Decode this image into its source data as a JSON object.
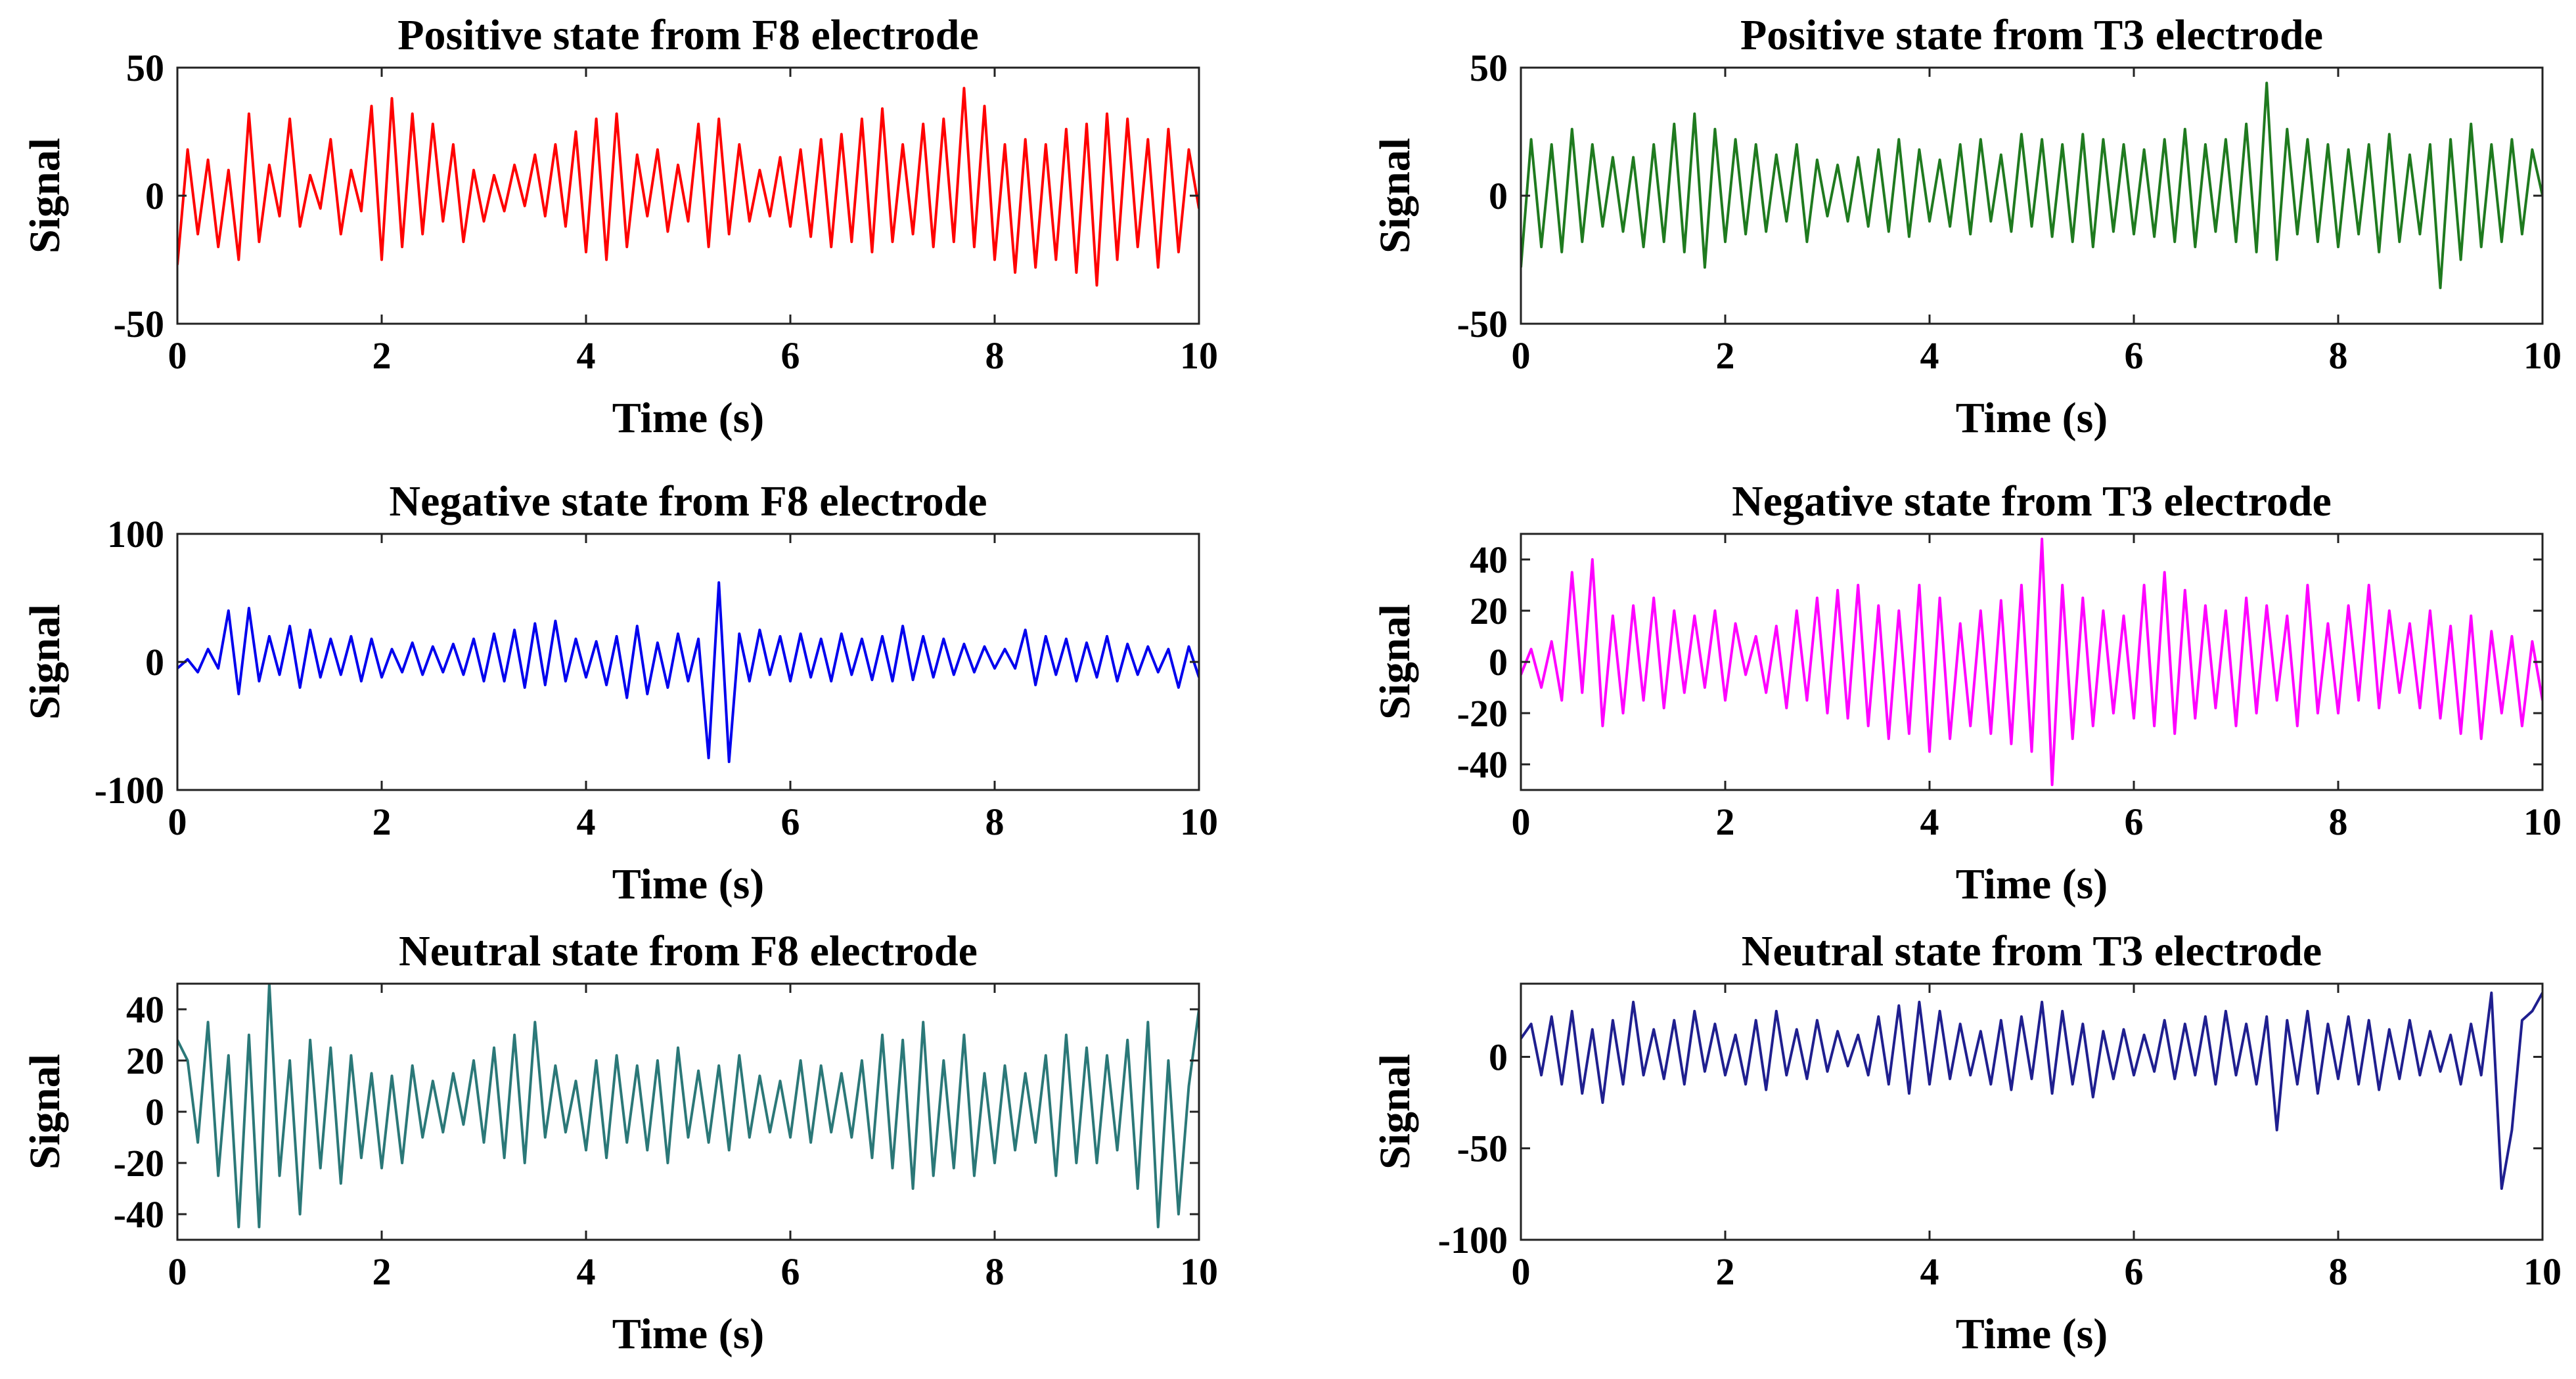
{
  "chart_data": [
    {
      "type": "line",
      "title": "Positive state from F8 electrode",
      "xlabel": "Time (s)",
      "ylabel": "Signal",
      "xlim": [
        0,
        10
      ],
      "ylim": [
        -50,
        50
      ],
      "xticks": [
        0,
        2,
        4,
        6,
        8,
        10
      ],
      "yticks": [
        -50,
        0,
        50
      ],
      "color": "#ff0000",
      "series": [
        {
          "name": "Positive state from F8 electrode",
          "x_start": 0,
          "x_step": 0.1,
          "values": [
            -27,
            18,
            -15,
            14,
            -20,
            10,
            -25,
            32,
            -18,
            12,
            -8,
            30,
            -12,
            8,
            -5,
            22,
            -15,
            10,
            -6,
            35,
            -25,
            38,
            -20,
            32,
            -15,
            28,
            -10,
            20,
            -18,
            10,
            -10,
            8,
            -6,
            12,
            -4,
            16,
            -8,
            20,
            -12,
            25,
            -22,
            30,
            -25,
            32,
            -20,
            16,
            -8,
            18,
            -14,
            12,
            -10,
            28,
            -20,
            30,
            -15,
            20,
            -10,
            10,
            -8,
            15,
            -12,
            18,
            -16,
            22,
            -20,
            24,
            -18,
            30,
            -22,
            34,
            -18,
            20,
            -15,
            28,
            -20,
            30,
            -18,
            42,
            -20,
            35,
            -25,
            20,
            -30,
            22,
            -28,
            20,
            -25,
            26,
            -30,
            28,
            -35,
            32,
            -25,
            30,
            -20,
            22,
            -28,
            26,
            -22,
            18,
            -5
          ]
        }
      ]
    },
    {
      "type": "line",
      "title": "Positive state from T3 electrode",
      "xlabel": "Time (s)",
      "ylabel": "Signal",
      "xlim": [
        0,
        10
      ],
      "ylim": [
        -50,
        50
      ],
      "xticks": [
        0,
        2,
        4,
        6,
        8,
        10
      ],
      "yticks": [
        -50,
        0,
        50
      ],
      "color": "#1f7a1f",
      "series": [
        {
          "name": "Positive state from T3 electrode",
          "x_start": 0,
          "x_step": 0.1,
          "values": [
            -28,
            22,
            -20,
            20,
            -22,
            26,
            -18,
            20,
            -12,
            15,
            -14,
            15,
            -20,
            20,
            -18,
            28,
            -22,
            32,
            -28,
            26,
            -18,
            22,
            -15,
            20,
            -14,
            16,
            -10,
            20,
            -18,
            14,
            -8,
            12,
            -10,
            15,
            -12,
            18,
            -14,
            22,
            -16,
            18,
            -10,
            14,
            -12,
            20,
            -15,
            22,
            -10,
            16,
            -14,
            24,
            -12,
            22,
            -16,
            20,
            -18,
            24,
            -20,
            22,
            -14,
            20,
            -15,
            18,
            -16,
            22,
            -18,
            26,
            -20,
            20,
            -14,
            22,
            -18,
            28,
            -22,
            44,
            -25,
            26,
            -15,
            22,
            -18,
            20,
            -20,
            18,
            -15,
            20,
            -22,
            24,
            -18,
            16,
            -15,
            20,
            -36,
            22,
            -25,
            28,
            -20,
            20,
            -18,
            22,
            -15,
            18,
            0
          ]
        }
      ]
    },
    {
      "type": "line",
      "title": "Negative state from F8 electrode",
      "xlabel": "Time (s)",
      "ylabel": "Signal",
      "xlim": [
        0,
        10
      ],
      "ylim": [
        -100,
        100
      ],
      "xticks": [
        0,
        2,
        4,
        6,
        8,
        10
      ],
      "yticks": [
        -100,
        0,
        100
      ],
      "color": "#0000ee",
      "series": [
        {
          "name": "Negative state from F8 electrode",
          "x_start": 0,
          "x_step": 0.1,
          "values": [
            -5,
            2,
            -8,
            10,
            -5,
            40,
            -25,
            42,
            -15,
            20,
            -10,
            28,
            -20,
            25,
            -12,
            18,
            -10,
            20,
            -15,
            18,
            -12,
            10,
            -8,
            15,
            -10,
            12,
            -8,
            14,
            -10,
            18,
            -15,
            22,
            -15,
            25,
            -20,
            30,
            -18,
            32,
            -15,
            18,
            -12,
            16,
            -18,
            20,
            -28,
            28,
            -25,
            15,
            -20,
            22,
            -15,
            18,
            -75,
            62,
            -78,
            22,
            -15,
            25,
            -10,
            20,
            -15,
            22,
            -12,
            18,
            -15,
            22,
            -10,
            18,
            -14,
            20,
            -15,
            28,
            -14,
            20,
            -12,
            18,
            -10,
            14,
            -8,
            12,
            -5,
            10,
            -5,
            25,
            -18,
            20,
            -10,
            18,
            -15,
            15,
            -12,
            20,
            -15,
            14,
            -10,
            12,
            -8,
            10,
            -20,
            12,
            -12
          ]
        }
      ]
    },
    {
      "type": "line",
      "title": "Negative state from T3 electrode",
      "xlabel": "Time (s)",
      "ylabel": "Signal",
      "xlim": [
        0,
        10
      ],
      "ylim": [
        -50,
        50
      ],
      "xticks": [
        0,
        2,
        4,
        6,
        8,
        10
      ],
      "yticks": [
        -40,
        -20,
        0,
        20,
        40
      ],
      "color": "#ff00ff",
      "series": [
        {
          "name": "Negative state from T3 electrode",
          "x_start": 0,
          "x_step": 0.1,
          "values": [
            -5,
            5,
            -10,
            8,
            -15,
            35,
            -12,
            40,
            -25,
            18,
            -20,
            22,
            -15,
            25,
            -18,
            20,
            -12,
            18,
            -10,
            20,
            -15,
            15,
            -5,
            10,
            -12,
            14,
            -18,
            20,
            -15,
            25,
            -20,
            28,
            -22,
            30,
            -25,
            22,
            -30,
            20,
            -28,
            30,
            -35,
            25,
            -30,
            15,
            -25,
            20,
            -28,
            24,
            -32,
            30,
            -35,
            48,
            -48,
            30,
            -30,
            25,
            -25,
            20,
            -20,
            18,
            -22,
            30,
            -25,
            35,
            -28,
            28,
            -22,
            22,
            -18,
            20,
            -25,
            25,
            -20,
            22,
            -15,
            18,
            -25,
            30,
            -20,
            15,
            -20,
            22,
            -15,
            30,
            -18,
            20,
            -12,
            15,
            -18,
            20,
            -22,
            14,
            -28,
            18,
            -30,
            12,
            -20,
            10,
            -25,
            8,
            -15
          ]
        }
      ]
    },
    {
      "type": "line",
      "title": "Neutral state from F8 electrode",
      "xlabel": "Time (s)",
      "ylabel": "Signal",
      "xlim": [
        0,
        10
      ],
      "ylim": [
        -50,
        50
      ],
      "xticks": [
        0,
        2,
        4,
        6,
        8,
        10
      ],
      "yticks": [
        -40,
        -20,
        0,
        20,
        40
      ],
      "color": "#2b7878",
      "series": [
        {
          "name": "Neutral state from F8 electrode",
          "x_start": 0,
          "x_step": 0.1,
          "values": [
            28,
            20,
            -12,
            35,
            -25,
            22,
            -45,
            30,
            -45,
            50,
            -25,
            20,
            -40,
            28,
            -22,
            25,
            -28,
            22,
            -18,
            15,
            -22,
            14,
            -20,
            18,
            -10,
            12,
            -8,
            15,
            -5,
            20,
            -12,
            25,
            -18,
            30,
            -20,
            35,
            -10,
            18,
            -8,
            12,
            -15,
            20,
            -18,
            22,
            -12,
            18,
            -15,
            20,
            -20,
            25,
            -10,
            16,
            -12,
            18,
            -15,
            22,
            -10,
            14,
            -8,
            12,
            -10,
            20,
            -12,
            18,
            -8,
            15,
            -10,
            20,
            -18,
            30,
            -22,
            28,
            -30,
            35,
            -25,
            20,
            -22,
            30,
            -25,
            15,
            -20,
            18,
            -15,
            15,
            -12,
            22,
            -25,
            30,
            -20,
            25,
            -20,
            22,
            -15,
            28,
            -30,
            35,
            -45,
            20,
            -40,
            10,
            40
          ]
        }
      ]
    },
    {
      "type": "line",
      "title": "Neutral state from T3 electrode",
      "xlabel": "Time (s)",
      "ylabel": "Signal",
      "xlim": [
        0,
        10
      ],
      "ylim": [
        -100,
        40
      ],
      "xticks": [
        0,
        2,
        4,
        6,
        8,
        10
      ],
      "yticks": [
        -100,
        -50,
        0
      ],
      "color": "#1f1f8f",
      "series": [
        {
          "name": "Neutral state from T3 electrode",
          "x_start": 0,
          "x_step": 0.1,
          "values": [
            10,
            18,
            -10,
            22,
            -15,
            25,
            -20,
            15,
            -25,
            20,
            -15,
            30,
            -10,
            15,
            -12,
            20,
            -15,
            25,
            -8,
            18,
            -10,
            12,
            -15,
            20,
            -18,
            25,
            -10,
            15,
            -12,
            20,
            -8,
            14,
            -5,
            12,
            -10,
            22,
            -15,
            28,
            -20,
            30,
            -15,
            25,
            -12,
            18,
            -10,
            14,
            -15,
            20,
            -18,
            22,
            -12,
            30,
            -20,
            25,
            -15,
            18,
            -22,
            14,
            -12,
            15,
            -10,
            12,
            -8,
            20,
            -12,
            18,
            -10,
            22,
            -15,
            25,
            -10,
            18,
            -15,
            22,
            -40,
            20,
            -15,
            25,
            -20,
            18,
            -12,
            22,
            -15,
            20,
            -18,
            15,
            -12,
            20,
            -10,
            14,
            -8,
            12,
            -15,
            18,
            -10,
            35,
            -72,
            -40,
            20,
            25,
            35
          ]
        }
      ]
    }
  ]
}
